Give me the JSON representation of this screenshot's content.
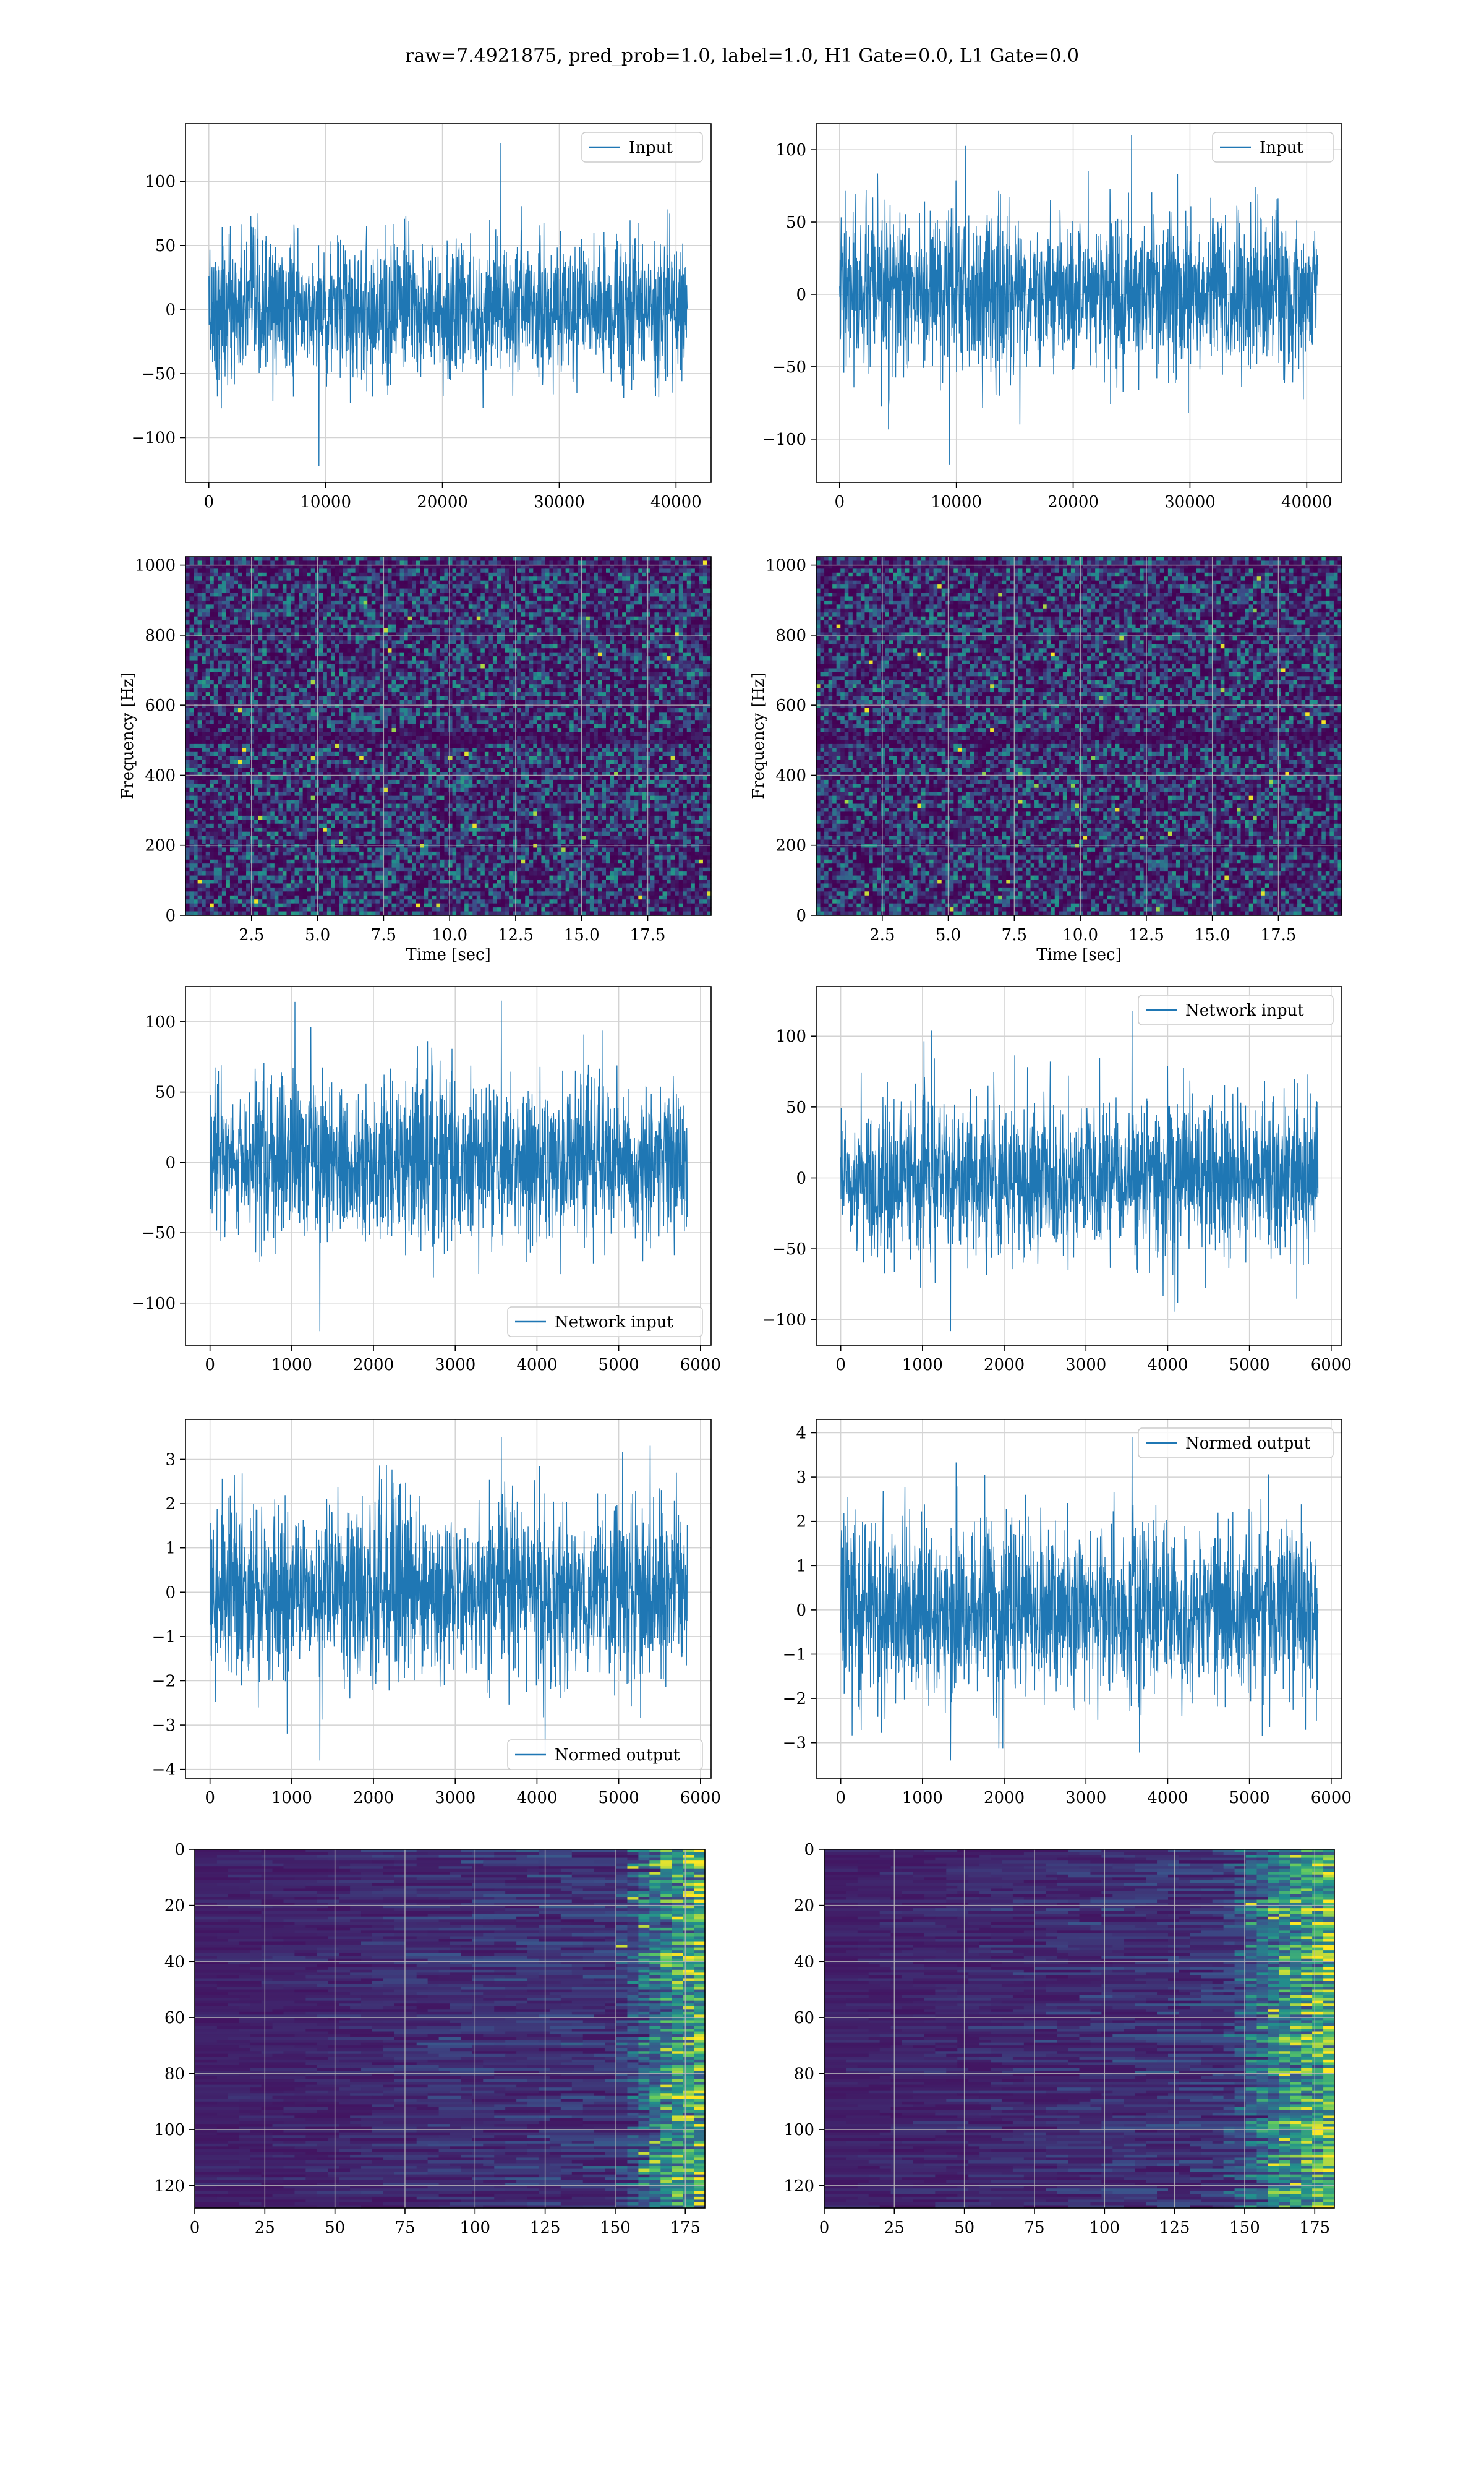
{
  "figure": {
    "suptitle": "raw=7.4921875, pred_prob=1.0, label=1.0, H1 Gate=0.0, L1 Gate=0.0"
  },
  "colors": {
    "line": "#1f77b4",
    "grid": "#d3d3d3",
    "viridis": [
      "#440154",
      "#3b528b",
      "#21918c",
      "#5ec962",
      "#fde725"
    ]
  },
  "chart_data": [
    {
      "type": "line",
      "panel": "row1-left",
      "series": [
        {
          "name": "Input",
          "n_samples": 40960,
          "amplitude_std": 27,
          "peak_max": 130,
          "peak_min": -122
        }
      ],
      "xlim": [
        -2000,
        43000
      ],
      "ylim": [
        -135,
        145
      ],
      "xticks": [
        0,
        10000,
        20000,
        30000,
        40000
      ],
      "yticks": [
        -100,
        -50,
        0,
        50,
        100
      ],
      "legend": "top-right",
      "title": "",
      "xlabel": "",
      "ylabel": ""
    },
    {
      "type": "line",
      "panel": "row1-right",
      "series": [
        {
          "name": "Input",
          "n_samples": 40960,
          "amplitude_std": 27,
          "peak_max": 110,
          "peak_min": -118
        }
      ],
      "xlim": [
        -2000,
        43000
      ],
      "ylim": [
        -130,
        118
      ],
      "xticks": [
        0,
        10000,
        20000,
        30000,
        40000
      ],
      "yticks": [
        -100,
        -50,
        0,
        50,
        100
      ],
      "legend": "top-right",
      "title": "",
      "xlabel": "",
      "ylabel": ""
    },
    {
      "type": "heatmap",
      "panel": "row2-left",
      "description": "spectrogram",
      "xlim": [
        0,
        19.9
      ],
      "ylim": [
        0,
        1024
      ],
      "xticks": [
        2.5,
        5.0,
        7.5,
        10.0,
        12.5,
        15.0,
        17.5
      ],
      "yticks": [
        0,
        200,
        400,
        600,
        800,
        1000
      ],
      "xlabel": "Time [sec]",
      "ylabel": "Frequency [Hz]",
      "colormap": "viridis"
    },
    {
      "type": "heatmap",
      "panel": "row2-right",
      "description": "spectrogram",
      "xlim": [
        0,
        19.9
      ],
      "ylim": [
        0,
        1024
      ],
      "xticks": [
        2.5,
        5.0,
        7.5,
        10.0,
        12.5,
        15.0,
        17.5
      ],
      "yticks": [
        0,
        200,
        400,
        600,
        800,
        1000
      ],
      "xlabel": "Time [sec]",
      "ylabel": "Frequency [Hz]",
      "colormap": "viridis"
    },
    {
      "type": "line",
      "panel": "row3-left",
      "series": [
        {
          "name": "Network input",
          "n_samples": 5840,
          "amplitude_std": 28,
          "peak_max": 115,
          "peak_min": -120
        }
      ],
      "xlim": [
        -300,
        6130
      ],
      "ylim": [
        -130,
        125
      ],
      "xticks": [
        0,
        1000,
        2000,
        3000,
        4000,
        5000,
        6000
      ],
      "yticks": [
        -100,
        -50,
        0,
        50,
        100
      ],
      "legend": "bottom-right",
      "title": "",
      "xlabel": "",
      "ylabel": ""
    },
    {
      "type": "line",
      "panel": "row3-right",
      "series": [
        {
          "name": "Network input",
          "n_samples": 5840,
          "amplitude_std": 27,
          "peak_max": 118,
          "peak_min": -108
        }
      ],
      "xlim": [
        -300,
        6130
      ],
      "ylim": [
        -118,
        135
      ],
      "xticks": [
        0,
        1000,
        2000,
        3000,
        4000,
        5000,
        6000
      ],
      "yticks": [
        -100,
        -50,
        0,
        50,
        100
      ],
      "legend": "top-right",
      "title": "",
      "xlabel": "",
      "ylabel": ""
    },
    {
      "type": "line",
      "panel": "row4-left",
      "series": [
        {
          "name": "Normed output",
          "n_samples": 5840,
          "amplitude_std": 1.0,
          "peak_max": 3.5,
          "peak_min": -3.8
        }
      ],
      "xlim": [
        -300,
        6130
      ],
      "ylim": [
        -4.2,
        3.9
      ],
      "xticks": [
        0,
        1000,
        2000,
        3000,
        4000,
        5000,
        6000
      ],
      "yticks": [
        -4,
        -3,
        -2,
        -1,
        0,
        1,
        2,
        3
      ],
      "legend": "bottom-right",
      "title": "",
      "xlabel": "",
      "ylabel": ""
    },
    {
      "type": "line",
      "panel": "row4-right",
      "series": [
        {
          "name": "Normed output",
          "n_samples": 5840,
          "amplitude_std": 1.0,
          "peak_max": 3.9,
          "peak_min": -3.4
        }
      ],
      "xlim": [
        -300,
        6130
      ],
      "ylim": [
        -3.8,
        4.3
      ],
      "xticks": [
        0,
        1000,
        2000,
        3000,
        4000,
        5000,
        6000
      ],
      "yticks": [
        -3,
        -2,
        -1,
        0,
        1,
        2,
        3,
        4
      ],
      "legend": "top-right",
      "title": "",
      "xlabel": "",
      "ylabel": ""
    },
    {
      "type": "heatmap",
      "panel": "row5-left",
      "description": "feature map (128 channels x 182 steps), activations concentrated near steps 160-182",
      "xlim": [
        0,
        182
      ],
      "ylim": [
        128,
        0
      ],
      "xticks": [
        0,
        25,
        50,
        75,
        100,
        125,
        150,
        175
      ],
      "yticks": [
        0,
        20,
        40,
        60,
        80,
        100,
        120
      ],
      "colormap": "viridis"
    },
    {
      "type": "heatmap",
      "panel": "row5-right",
      "description": "feature map (128 channels x 182 steps), activations concentrated near steps 150-182",
      "xlim": [
        0,
        182
      ],
      "ylim": [
        128,
        0
      ],
      "xticks": [
        0,
        25,
        50,
        75,
        100,
        125,
        150,
        175
      ],
      "yticks": [
        0,
        20,
        40,
        60,
        80,
        100,
        120
      ],
      "colormap": "viridis"
    }
  ]
}
